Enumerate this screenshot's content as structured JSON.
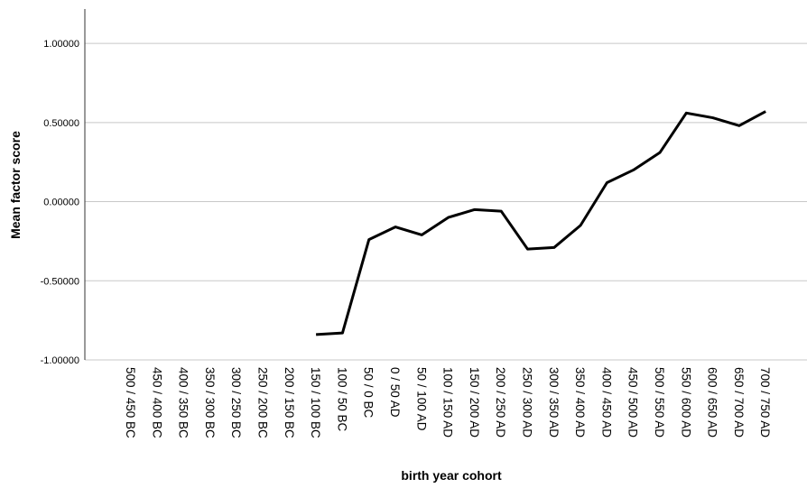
{
  "chart_data": {
    "type": "line",
    "x_label": "birth year cohort",
    "y_label": "Mean factor score",
    "categories": [
      "500 / 450 BC",
      "450 / 400 BC",
      "400 / 350 BC",
      "350 / 300 BC",
      "300 / 250 BC",
      "250 / 200 BC",
      "200 / 150 BC",
      "150 / 100 BC",
      "100 / 50 BC",
      "50 / 0 BC",
      "0 / 50 AD",
      "50 / 100 AD",
      "100 / 150 AD",
      "150 / 200 AD",
      "200 / 250 AD",
      "250 / 300 AD",
      "300 / 350 AD",
      "350 / 400 AD",
      "400 / 450 AD",
      "450 / 500 AD",
      "500 / 550 AD",
      "550 / 600 AD",
      "600 / 650 AD",
      "650 / 700 AD",
      "700 / 750 AD"
    ],
    "values": [
      null,
      null,
      null,
      null,
      null,
      null,
      null,
      -0.84,
      -0.83,
      -0.24,
      -0.16,
      -0.21,
      -0.1,
      -0.05,
      -0.06,
      -0.3,
      -0.29,
      -0.15,
      0.12,
      0.2,
      0.31,
      0.56,
      0.53,
      0.48,
      0.57
    ],
    "color": "#000000",
    "ylim": [
      -1,
      1.2
    ],
    "yticks": [
      {
        "value": -1,
        "label": "-1.00000"
      },
      {
        "value": -0.5,
        "label": "-0.50000"
      },
      {
        "value": 0,
        "label": "0.00000"
      },
      {
        "value": 0.5,
        "label": "0.50000"
      },
      {
        "value": 1,
        "label": "1.00000"
      }
    ],
    "grid": true
  }
}
